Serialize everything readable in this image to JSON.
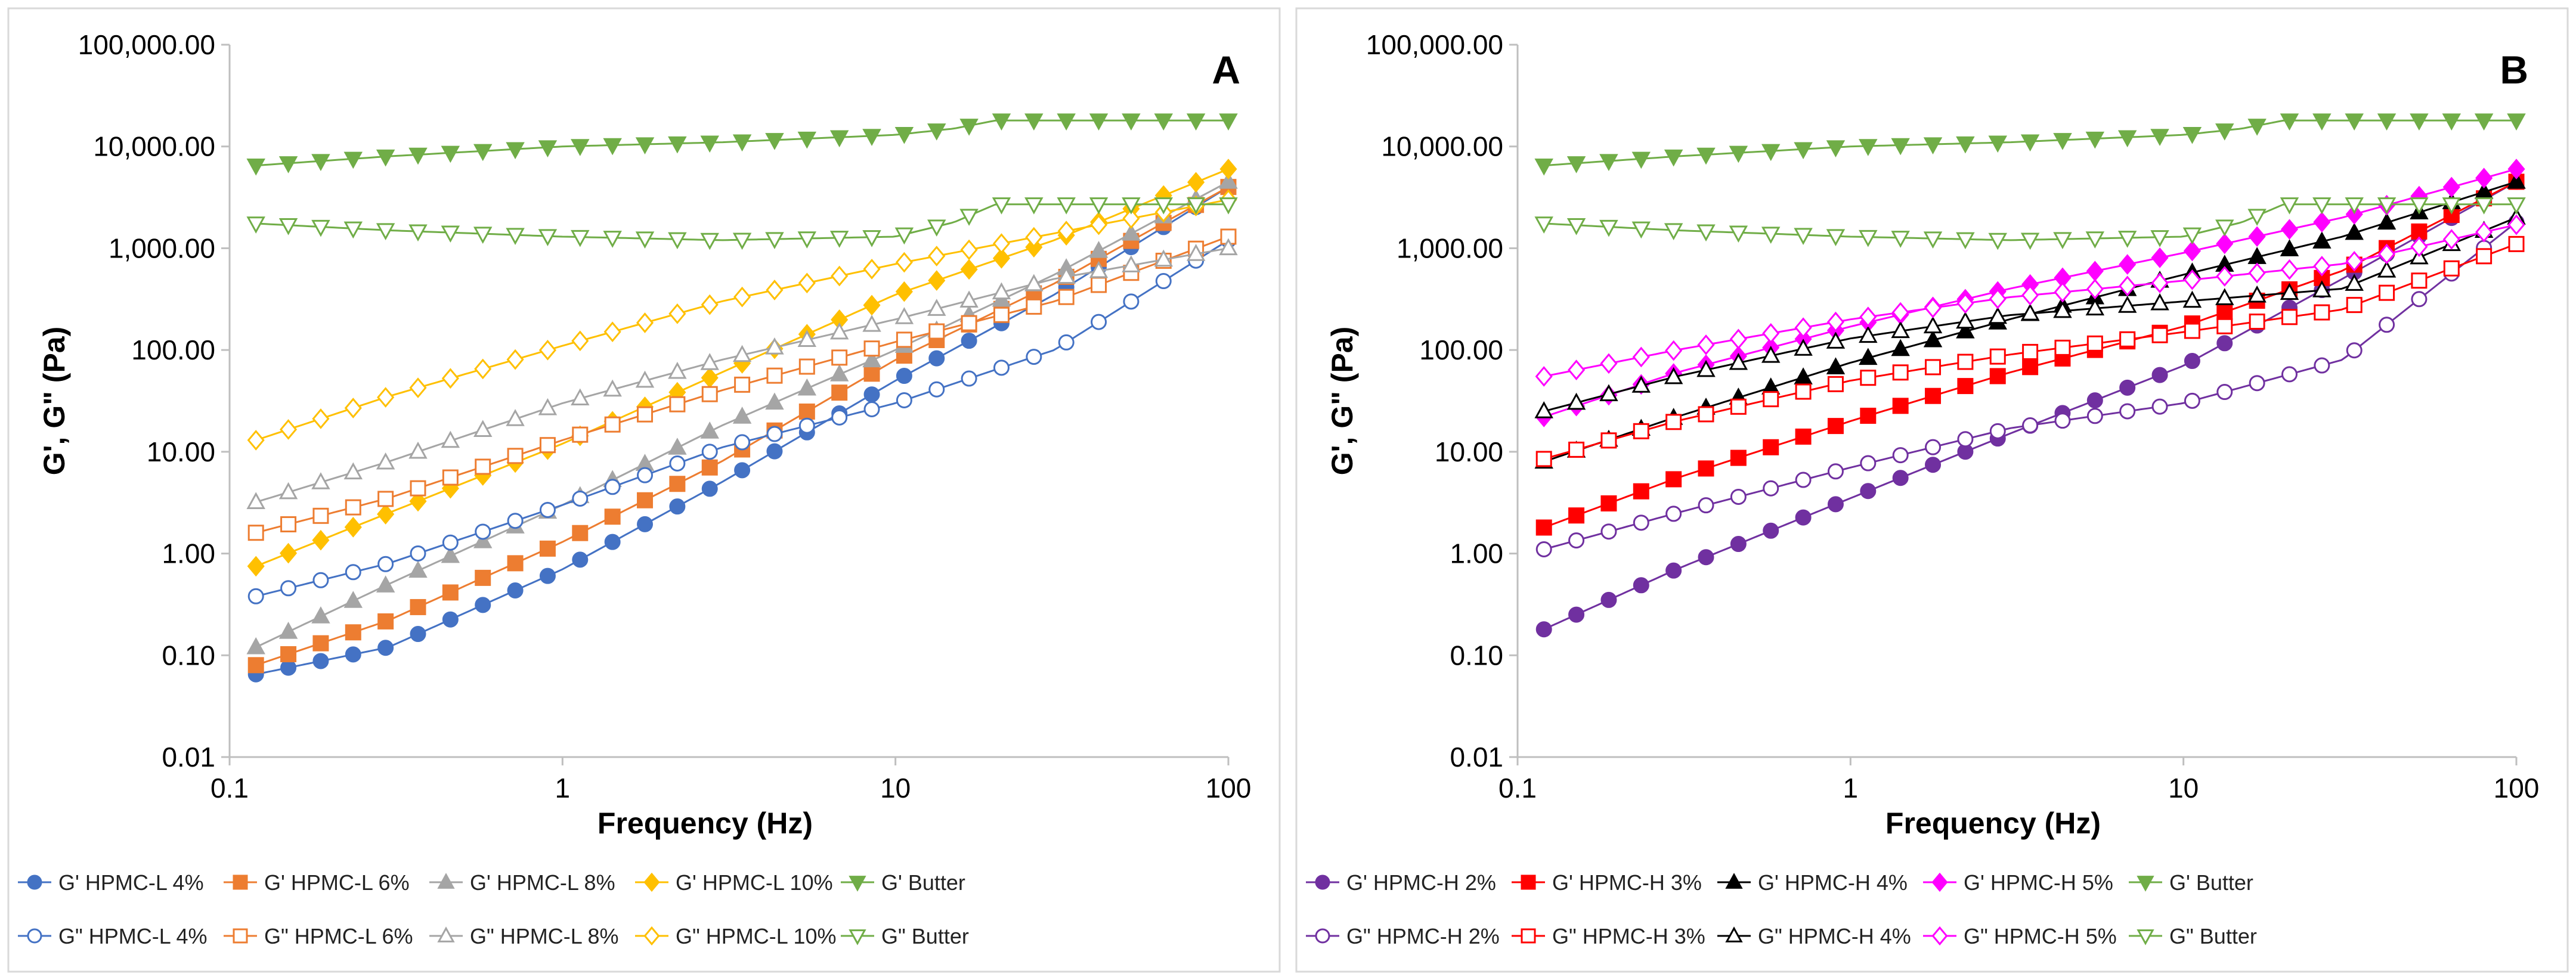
{
  "chart_data": [
    {
      "type": "scatter",
      "panel_label": "A",
      "title": "",
      "xlabel": "Frequency (Hz)",
      "ylabel": "G', G\" (Pa)",
      "xscale": "log",
      "yscale": "log",
      "xlim": [
        0.1,
        100
      ],
      "ylim": [
        0.01,
        100000
      ],
      "x_ticks": [
        "0.1",
        "1",
        "10",
        "100"
      ],
      "y_ticks": [
        "0.01",
        "0.10",
        "1.00",
        "10.00",
        "100.00",
        "1,000.00",
        "10,000.00",
        "100,000.00"
      ],
      "grid": false,
      "legend_position": "bottom",
      "series": [
        {
          "name": "G' HPMC-L 4%",
          "color": "#4472C4",
          "marker": "circle",
          "filled": true,
          "anchors": [
            [
              0.12,
              0.065
            ],
            [
              0.3,
              0.12
            ],
            [
              1,
              0.7
            ],
            [
              3,
              5
            ],
            [
              10,
              50
            ],
            [
              30,
              350
            ],
            [
              100,
              4000
            ]
          ]
        },
        {
          "name": "G' HPMC-L 6%",
          "color": "#ED7D31",
          "marker": "square",
          "filled": true,
          "anchors": [
            [
              0.12,
              0.08
            ],
            [
              0.3,
              0.22
            ],
            [
              1,
              1.3
            ],
            [
              3,
              8
            ],
            [
              10,
              80
            ],
            [
              30,
              450
            ],
            [
              100,
              4000
            ]
          ]
        },
        {
          "name": "G' HPMC-L 8%",
          "color": "#A5A5A5",
          "marker": "triangle",
          "filled": true,
          "anchors": [
            [
              0.12,
              0.12
            ],
            [
              0.3,
              0.5
            ],
            [
              1,
              3
            ],
            [
              3,
              18
            ],
            [
              10,
              100
            ],
            [
              30,
              550
            ],
            [
              100,
              4500
            ]
          ]
        },
        {
          "name": "G' HPMC-L 10%",
          "color": "#FFC000",
          "marker": "diamond",
          "filled": true,
          "anchors": [
            [
              0.12,
              0.75
            ],
            [
              0.3,
              2.5
            ],
            [
              1,
              12
            ],
            [
              3,
              60
            ],
            [
              10,
              350
            ],
            [
              30,
              1200
            ],
            [
              100,
              6000
            ]
          ]
        },
        {
          "name": "G' Butter",
          "color": "#70AD47",
          "marker": "triangle-down",
          "filled": true,
          "anchors": [
            [
              0.12,
              6500
            ],
            [
              0.3,
              8000
            ],
            [
              1,
              10000
            ],
            [
              3,
              11000
            ],
            [
              10,
              13000
            ],
            [
              15,
              15000
            ],
            [
              20,
              18000
            ],
            [
              100,
              18000
            ]
          ]
        },
        {
          "name": "G\" HPMC-L 4%",
          "color": "#4472C4",
          "marker": "circle",
          "filled": false,
          "anchors": [
            [
              0.12,
              0.38
            ],
            [
              0.3,
              0.8
            ],
            [
              1,
              3
            ],
            [
              3,
              11
            ],
            [
              10,
              30
            ],
            [
              30,
              100
            ],
            [
              100,
              1200
            ]
          ]
        },
        {
          "name": "G\" HPMC-L 6%",
          "color": "#ED7D31",
          "marker": "square",
          "filled": false,
          "anchors": [
            [
              0.12,
              1.6
            ],
            [
              0.3,
              3.5
            ],
            [
              1,
              13
            ],
            [
              3,
              40
            ],
            [
              10,
              120
            ],
            [
              30,
              300
            ],
            [
              100,
              1300
            ]
          ]
        },
        {
          "name": "G\" HPMC-L 8%",
          "color": "#A5A5A5",
          "marker": "triangle",
          "filled": false,
          "anchors": [
            [
              0.12,
              3.2
            ],
            [
              0.3,
              8
            ],
            [
              1,
              30
            ],
            [
              3,
              80
            ],
            [
              10,
              200
            ],
            [
              30,
              500
            ],
            [
              100,
              1000
            ]
          ]
        },
        {
          "name": "G\" HPMC-L 10%",
          "color": "#FFC000",
          "marker": "diamond",
          "filled": false,
          "anchors": [
            [
              0.12,
              13
            ],
            [
              0.3,
              35
            ],
            [
              1,
              110
            ],
            [
              3,
              300
            ],
            [
              10,
              700
            ],
            [
              30,
              1400
            ],
            [
              100,
              3000
            ]
          ]
        },
        {
          "name": "G\" Butter",
          "color": "#70AD47",
          "marker": "triangle-down",
          "filled": false,
          "anchors": [
            [
              0.12,
              1750
            ],
            [
              0.3,
              1500
            ],
            [
              1,
              1300
            ],
            [
              3,
              1200
            ],
            [
              10,
              1300
            ],
            [
              15,
              1800
            ],
            [
              20,
              2700
            ],
            [
              100,
              2700
            ]
          ]
        }
      ]
    },
    {
      "type": "scatter",
      "panel_label": "B",
      "title": "",
      "xlabel": "Frequency (Hz)",
      "ylabel": "G', G\" (Pa)",
      "xscale": "log",
      "yscale": "log",
      "xlim": [
        0.1,
        100
      ],
      "ylim": [
        0.01,
        100000
      ],
      "x_ticks": [
        "0.1",
        "1",
        "10",
        "100"
      ],
      "y_ticks": [
        "0.01",
        "0.10",
        "1.00",
        "10.00",
        "100.00",
        "1,000.00",
        "10,000.00",
        "100,000.00"
      ],
      "grid": false,
      "legend_position": "bottom",
      "series": [
        {
          "name": "G' HPMC-H 2%",
          "color": "#7030A0",
          "marker": "circle",
          "filled": true,
          "anchors": [
            [
              0.12,
              0.18
            ],
            [
              0.3,
              0.7
            ],
            [
              1,
              3.5
            ],
            [
              3,
              15
            ],
            [
              10,
              70
            ],
            [
              30,
              500
            ],
            [
              100,
              4500
            ]
          ]
        },
        {
          "name": "G' HPMC-H 3%",
          "color": "#FF0000",
          "marker": "square",
          "filled": true,
          "anchors": [
            [
              0.12,
              1.8
            ],
            [
              0.3,
              5.5
            ],
            [
              1,
              20
            ],
            [
              3,
              60
            ],
            [
              10,
              170
            ],
            [
              30,
              600
            ],
            [
              100,
              4500
            ]
          ]
        },
        {
          "name": "G' HPMC-H 4%",
          "color": "#000000",
          "marker": "triangle",
          "filled": true,
          "anchors": [
            [
              0.12,
              8
            ],
            [
              0.3,
              22
            ],
            [
              1,
              75
            ],
            [
              3,
              200
            ],
            [
              10,
              550
            ],
            [
              30,
              1300
            ],
            [
              100,
              4500
            ]
          ]
        },
        {
          "name": "G' HPMC-H 5%",
          "color": "#FF00FF",
          "marker": "diamond",
          "filled": true,
          "anchors": [
            [
              0.12,
              22
            ],
            [
              0.3,
              60
            ],
            [
              1,
              170
            ],
            [
              3,
              400
            ],
            [
              10,
              900
            ],
            [
              30,
              2000
            ],
            [
              100,
              6000
            ]
          ]
        },
        {
          "name": "G' Butter",
          "color": "#70AD47",
          "marker": "triangle-down",
          "filled": true,
          "anchors": [
            [
              0.12,
              6500
            ],
            [
              0.3,
              8000
            ],
            [
              1,
              10000
            ],
            [
              3,
              11000
            ],
            [
              10,
              13000
            ],
            [
              15,
              15000
            ],
            [
              20,
              18000
            ],
            [
              100,
              18000
            ]
          ]
        },
        {
          "name": "G\" HPMC-H 2%",
          "color": "#7030A0",
          "marker": "circle",
          "filled": false,
          "anchors": [
            [
              0.12,
              1.1
            ],
            [
              0.3,
              2.5
            ],
            [
              1,
              7
            ],
            [
              3,
              17
            ],
            [
              10,
              30
            ],
            [
              30,
              80
            ],
            [
              100,
              1800
            ]
          ]
        },
        {
          "name": "G\" HPMC-H 3%",
          "color": "#FF0000",
          "marker": "square",
          "filled": false,
          "anchors": [
            [
              0.12,
              8.5
            ],
            [
              0.3,
              20
            ],
            [
              1,
              50
            ],
            [
              3,
              90
            ],
            [
              10,
              150
            ],
            [
              30,
              250
            ],
            [
              100,
              1100
            ]
          ]
        },
        {
          "name": "G\" HPMC-H 4%",
          "color": "#000000",
          "marker": "triangle",
          "filled": false,
          "anchors": [
            [
              0.12,
              25
            ],
            [
              0.3,
              55
            ],
            [
              1,
              130
            ],
            [
              3,
              220
            ],
            [
              10,
              300
            ],
            [
              30,
              400
            ],
            [
              100,
              2000
            ]
          ]
        },
        {
          "name": "G\" HPMC-H 5%",
          "color": "#FF00FF",
          "marker": "diamond",
          "filled": false,
          "anchors": [
            [
              0.12,
              55
            ],
            [
              0.3,
              100
            ],
            [
              1,
              200
            ],
            [
              3,
              330
            ],
            [
              10,
              480
            ],
            [
              30,
              700
            ],
            [
              100,
              1700
            ]
          ]
        },
        {
          "name": "G\" Butter",
          "color": "#70AD47",
          "marker": "triangle-down",
          "filled": false,
          "anchors": [
            [
              0.12,
              1750
            ],
            [
              0.3,
              1500
            ],
            [
              1,
              1300
            ],
            [
              3,
              1200
            ],
            [
              10,
              1300
            ],
            [
              15,
              1800
            ],
            [
              20,
              2700
            ],
            [
              100,
              2700
            ]
          ]
        }
      ]
    }
  ]
}
